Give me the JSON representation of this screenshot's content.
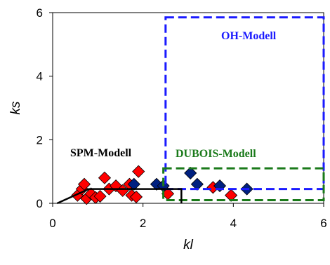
{
  "chart_data": {
    "type": "scatter",
    "title": "",
    "xlabel": "kl",
    "ylabel": "ks",
    "xlim": [
      0,
      6
    ],
    "ylim": [
      0,
      6
    ],
    "xticks": [
      "0",
      "2",
      "4",
      "6"
    ],
    "yticks": [
      "0",
      "2",
      "4",
      "6"
    ],
    "grid": false,
    "series": [
      {
        "color": "#ff0000",
        "marker": "diamond",
        "points": [
          [
            0.55,
            0.25
          ],
          [
            0.65,
            0.45
          ],
          [
            0.7,
            0.6
          ],
          [
            0.75,
            0.15
          ],
          [
            0.85,
            0.3
          ],
          [
            0.95,
            0.18
          ],
          [
            1.05,
            0.22
          ],
          [
            1.15,
            0.8
          ],
          [
            1.25,
            0.45
          ],
          [
            1.4,
            0.55
          ],
          [
            1.55,
            0.4
          ],
          [
            1.7,
            0.6
          ],
          [
            1.75,
            0.25
          ],
          [
            1.85,
            0.2
          ],
          [
            1.9,
            1.0
          ],
          [
            2.55,
            0.3
          ],
          [
            3.55,
            0.5
          ],
          [
            3.95,
            0.25
          ]
        ]
      },
      {
        "color": "#002080",
        "marker": "diamond",
        "points": [
          [
            1.8,
            0.6
          ],
          [
            2.3,
            0.6
          ],
          [
            2.45,
            0.55
          ],
          [
            3.05,
            0.95
          ],
          [
            3.2,
            0.6
          ],
          [
            3.7,
            0.55
          ],
          [
            4.3,
            0.45
          ]
        ]
      }
    ],
    "regions": [
      {
        "label": "OH-Modell",
        "color": "#1a1aff",
        "style": "dashed",
        "x": [
          2.5,
          6
        ],
        "y": [
          0.45,
          5.85
        ]
      },
      {
        "label": "DUBOIS-Modell",
        "color": "#1a7a1a",
        "style": "dashed",
        "x": [
          2.45,
          6
        ],
        "y": [
          0.1,
          1.1
        ]
      },
      {
        "label": "SPM-Modell",
        "color": "#000000",
        "style": "solid",
        "x": [
          0.1,
          2.85
        ],
        "y": [
          0,
          0.45
        ]
      }
    ]
  }
}
